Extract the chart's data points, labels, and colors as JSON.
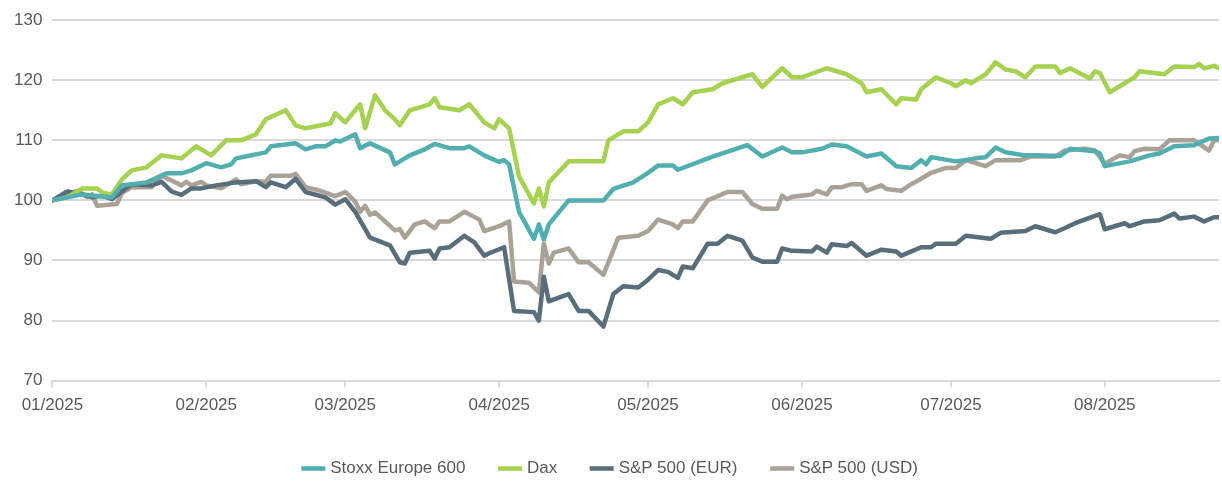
{
  "chart_data": {
    "type": "line",
    "xlim": [
      "2025-01-01",
      "2025-08-24"
    ],
    "xticks": [
      {
        "value": "2025-01-01",
        "label": "01/2025"
      },
      {
        "value": "2025-02-01",
        "label": "02/2025"
      },
      {
        "value": "2025-03-01",
        "label": "03/2025"
      },
      {
        "value": "2025-04-01",
        "label": "04/2025"
      },
      {
        "value": "2025-05-01",
        "label": "05/2025"
      },
      {
        "value": "2025-06-01",
        "label": "06/2025"
      },
      {
        "value": "2025-07-01",
        "label": "07/2025"
      },
      {
        "value": "2025-08-01",
        "label": "08/2025"
      }
    ],
    "ylim": [
      70,
      130
    ],
    "yticks": [
      70,
      80,
      90,
      100,
      110,
      120,
      130
    ],
    "grid": "y",
    "legend": "bottom",
    "marker": "none",
    "line_style": "solid",
    "series": [
      {
        "name": "Stoxx Europe 600",
        "color": "#52afb0",
        "x": [
          "2025-01-01",
          "2025-01-07",
          "2025-01-13",
          "2025-01-15",
          "2025-01-20",
          "2025-01-24",
          "2025-01-27",
          "2025-01-29",
          "2025-02-01",
          "2025-02-04",
          "2025-02-06",
          "2025-02-07",
          "2025-02-13",
          "2025-02-14",
          "2025-02-19",
          "2025-02-21",
          "2025-02-23",
          "2025-02-25",
          "2025-02-27",
          "2025-02-28",
          "2025-03-03",
          "2025-03-04",
          "2025-03-06",
          "2025-03-10",
          "2025-03-11",
          "2025-03-12",
          "2025-03-14",
          "2025-03-17",
          "2025-03-19",
          "2025-03-22",
          "2025-03-25",
          "2025-03-26",
          "2025-03-29",
          "2025-04-01",
          "2025-04-02",
          "2025-04-03",
          "2025-04-05",
          "2025-04-08",
          "2025-04-09",
          "2025-04-10",
          "2025-04-11",
          "2025-04-15",
          "2025-04-22",
          "2025-04-24",
          "2025-04-28",
          "2025-05-01",
          "2025-05-03",
          "2025-05-06",
          "2025-05-07",
          "2025-05-14",
          "2025-05-21",
          "2025-05-24",
          "2025-05-28",
          "2025-05-30",
          "2025-06-01",
          "2025-06-05",
          "2025-06-07",
          "2025-06-10",
          "2025-06-14",
          "2025-06-17",
          "2025-06-20",
          "2025-06-23",
          "2025-06-25",
          "2025-06-26",
          "2025-06-27",
          "2025-07-02",
          "2025-07-06",
          "2025-07-08",
          "2025-07-10",
          "2025-07-12",
          "2025-07-16",
          "2025-07-18",
          "2025-07-23",
          "2025-07-25",
          "2025-07-30",
          "2025-07-31",
          "2025-08-01",
          "2025-08-06",
          "2025-08-10",
          "2025-08-12",
          "2025-08-15",
          "2025-08-19",
          "2025-08-22",
          "2025-08-24"
        ],
        "values": [
          100,
          101,
          100.5,
          102.5,
          103,
          104.5,
          104.5,
          105,
          106.2,
          105.5,
          106,
          107,
          108,
          109,
          109.5,
          108.5,
          109,
          109,
          110,
          109.8,
          111,
          108.7,
          109.5,
          108,
          106,
          106.5,
          107.5,
          108.5,
          109.4,
          108.7,
          108.7,
          109,
          107.5,
          106.4,
          106.7,
          106,
          98.1,
          93.6,
          96,
          93.5,
          96,
          100,
          100,
          101.9,
          103,
          104.6,
          105.8,
          105.8,
          105.1,
          107.3,
          109.2,
          107.3,
          108.8,
          108,
          108,
          108.6,
          109.3,
          109,
          107.3,
          107.8,
          105.7,
          105.4,
          106.7,
          106,
          107.2,
          106.5,
          107,
          107.2,
          108.8,
          108,
          107.5,
          107.5,
          107.4,
          108.6,
          108.2,
          107.8,
          105.7,
          106.5,
          107.5,
          107.8,
          109,
          109.2,
          110.3,
          110.4
        ]
      },
      {
        "name": "Dax",
        "color": "#a6d151",
        "x": [
          "2025-01-01",
          "2025-01-04",
          "2025-01-07",
          "2025-01-10",
          "2025-01-11",
          "2025-01-13",
          "2025-01-15",
          "2025-01-17",
          "2025-01-20",
          "2025-01-23",
          "2025-01-27",
          "2025-01-30",
          "2025-02-02",
          "2025-02-05",
          "2025-02-08",
          "2025-02-11",
          "2025-02-13",
          "2025-02-17",
          "2025-02-19",
          "2025-02-21",
          "2025-02-26",
          "2025-02-27",
          "2025-03-01",
          "2025-03-04",
          "2025-03-05",
          "2025-03-07",
          "2025-03-09",
          "2025-03-11",
          "2025-03-12",
          "2025-03-14",
          "2025-03-18",
          "2025-03-19",
          "2025-03-20",
          "2025-03-24",
          "2025-03-26",
          "2025-03-29",
          "2025-03-31",
          "2025-04-01",
          "2025-04-03",
          "2025-04-05",
          "2025-04-08",
          "2025-04-09",
          "2025-04-10",
          "2025-04-11",
          "2025-04-15",
          "2025-04-18",
          "2025-04-22",
          "2025-04-23",
          "2025-04-26",
          "2025-04-29",
          "2025-05-01",
          "2025-05-03",
          "2025-05-06",
          "2025-05-08",
          "2025-05-10",
          "2025-05-14",
          "2025-05-16",
          "2025-05-22",
          "2025-05-24",
          "2025-05-28",
          "2025-05-30",
          "2025-06-01",
          "2025-06-06",
          "2025-06-10",
          "2025-06-13",
          "2025-06-14",
          "2025-06-17",
          "2025-06-20",
          "2025-06-21",
          "2025-06-24",
          "2025-06-25",
          "2025-06-28",
          "2025-07-01",
          "2025-07-02",
          "2025-07-04",
          "2025-07-05",
          "2025-07-08",
          "2025-07-10",
          "2025-07-12",
          "2025-07-14",
          "2025-07-16",
          "2025-07-18",
          "2025-07-22",
          "2025-07-23",
          "2025-07-25",
          "2025-07-29",
          "2025-07-30",
          "2025-07-31",
          "2025-08-02",
          "2025-08-07",
          "2025-08-08",
          "2025-08-13",
          "2025-08-15",
          "2025-08-19",
          "2025-08-20",
          "2025-08-21",
          "2025-08-23",
          "2025-08-24"
        ],
        "values": [
          100,
          100.5,
          102,
          102,
          101.3,
          101,
          103.5,
          105,
          105.5,
          107.5,
          107,
          109,
          107.5,
          110,
          110,
          111,
          113.5,
          115,
          112.5,
          112,
          112.8,
          114.5,
          113,
          116,
          112,
          117.5,
          115,
          113.5,
          112.5,
          115,
          116,
          117,
          115.5,
          115,
          116,
          113,
          112,
          113.5,
          112,
          104,
          99.5,
          102,
          99,
          103,
          106.5,
          106.5,
          106.5,
          110,
          111.5,
          111.5,
          113,
          116,
          117,
          116,
          118,
          118.5,
          119.5,
          121,
          118.9,
          122,
          120.5,
          120.5,
          122,
          121,
          119.5,
          118,
          118.5,
          116,
          117,
          116.8,
          118.5,
          120.5,
          119.5,
          119,
          120,
          119.5,
          121,
          123,
          121.8,
          121.5,
          120.5,
          122.3,
          122.3,
          121.2,
          122,
          120.3,
          121.5,
          121.2,
          118,
          120.5,
          121.5,
          121,
          122.3,
          122.2,
          122.7,
          122,
          122.4,
          122
        ]
      },
      {
        "name": "S&P 500 (EUR)",
        "color": "#586e7a",
        "x": [
          "2025-01-01",
          "2025-01-04",
          "2025-01-07",
          "2025-01-09",
          "2025-01-11",
          "2025-01-13",
          "2025-01-15",
          "2025-01-17",
          "2025-01-21",
          "2025-01-23",
          "2025-01-25",
          "2025-01-27",
          "2025-01-29",
          "2025-01-31",
          "2025-02-03",
          "2025-02-07",
          "2025-02-11",
          "2025-02-13",
          "2025-02-14",
          "2025-02-17",
          "2025-02-19",
          "2025-02-21",
          "2025-02-25",
          "2025-02-27",
          "2025-03-01",
          "2025-03-03",
          "2025-03-06",
          "2025-03-10",
          "2025-03-12",
          "2025-03-13",
          "2025-03-14",
          "2025-03-18",
          "2025-03-19",
          "2025-03-20",
          "2025-03-22",
          "2025-03-25",
          "2025-03-27",
          "2025-03-29",
          "2025-03-30",
          "2025-04-02",
          "2025-04-04",
          "2025-04-08",
          "2025-04-09",
          "2025-04-10",
          "2025-04-11",
          "2025-04-13",
          "2025-04-15",
          "2025-04-17",
          "2025-04-19",
          "2025-04-22",
          "2025-04-24",
          "2025-04-26",
          "2025-04-29",
          "2025-05-01",
          "2025-05-03",
          "2025-05-05",
          "2025-05-07",
          "2025-05-08",
          "2025-05-10",
          "2025-05-13",
          "2025-05-15",
          "2025-05-17",
          "2025-05-20",
          "2025-05-22",
          "2025-05-24",
          "2025-05-27",
          "2025-05-28",
          "2025-05-30",
          "2025-06-03",
          "2025-06-04",
          "2025-06-06",
          "2025-06-07",
          "2025-06-10",
          "2025-06-11",
          "2025-06-14",
          "2025-06-17",
          "2025-06-20",
          "2025-06-21",
          "2025-06-25",
          "2025-06-27",
          "2025-06-28",
          "2025-07-02",
          "2025-07-04",
          "2025-07-09",
          "2025-07-11",
          "2025-07-16",
          "2025-07-18",
          "2025-07-22",
          "2025-07-24",
          "2025-07-26",
          "2025-07-31",
          "2025-08-01",
          "2025-08-05",
          "2025-08-06",
          "2025-08-09",
          "2025-08-12",
          "2025-08-15",
          "2025-08-16",
          "2025-08-19",
          "2025-08-21",
          "2025-08-23",
          "2025-08-24"
        ],
        "values": [
          100,
          101.5,
          101,
          100.5,
          100.8,
          100.2,
          101.5,
          102.7,
          102.5,
          103.1,
          101.5,
          100.9,
          102,
          102,
          102.5,
          103,
          103.2,
          102.2,
          103,
          102.2,
          103.6,
          101.4,
          100.5,
          99.3,
          100.2,
          98.1,
          93.8,
          92.5,
          89.7,
          89.5,
          91.3,
          91.6,
          90.3,
          92,
          92.2,
          94.1,
          93,
          90.8,
          91.2,
          92.2,
          81.6,
          81.4,
          80,
          87.3,
          83.2,
          83.8,
          84.4,
          81.6,
          81.6,
          79,
          84.4,
          85.7,
          85.5,
          86.8,
          88.4,
          88.1,
          87.1,
          89,
          88.7,
          92.8,
          92.8,
          94.1,
          93.3,
          90.5,
          89.8,
          89.8,
          92,
          91.6,
          91.5,
          92.3,
          91.3,
          92.7,
          92.4,
          92.9,
          90.8,
          91.8,
          91.5,
          90.8,
          92.2,
          92.2,
          92.8,
          92.8,
          94.1,
          93.6,
          94.6,
          94.9,
          95.7,
          94.7,
          95.4,
          96.2,
          97.7,
          95.2,
          96.2,
          95.7,
          96.5,
          96.7,
          97.8,
          97,
          97.3,
          96.5,
          97.2,
          97.2
        ]
      },
      {
        "name": "S&P 500 (USD)",
        "color": "#aaa197",
        "x": [
          "2025-01-01",
          "2025-01-04",
          "2025-01-06",
          "2025-01-08",
          "2025-01-09",
          "2025-01-10",
          "2025-01-14",
          "2025-01-15",
          "2025-01-17",
          "2025-01-21",
          "2025-01-23",
          "2025-01-25",
          "2025-01-27",
          "2025-01-28",
          "2025-01-29",
          "2025-01-31",
          "2025-02-01",
          "2025-02-04",
          "2025-02-07",
          "2025-02-08",
          "2025-02-11",
          "2025-02-13",
          "2025-02-14",
          "2025-02-18",
          "2025-02-19",
          "2025-02-21",
          "2025-02-24",
          "2025-02-26",
          "2025-02-27",
          "2025-03-01",
          "2025-03-03",
          "2025-03-04",
          "2025-03-05",
          "2025-03-06",
          "2025-03-07",
          "2025-03-11",
          "2025-03-12",
          "2025-03-13",
          "2025-03-15",
          "2025-03-17",
          "2025-03-19",
          "2025-03-20",
          "2025-03-22",
          "2025-03-25",
          "2025-03-28",
          "2025-03-29",
          "2025-04-01",
          "2025-04-03",
          "2025-04-04",
          "2025-04-07",
          "2025-04-09",
          "2025-04-10",
          "2025-04-11",
          "2025-04-12",
          "2025-04-15",
          "2025-04-17",
          "2025-04-19",
          "2025-04-22",
          "2025-04-25",
          "2025-04-29",
          "2025-05-01",
          "2025-05-03",
          "2025-05-06",
          "2025-05-07",
          "2025-05-08",
          "2025-05-10",
          "2025-05-13",
          "2025-05-17",
          "2025-05-20",
          "2025-05-22",
          "2025-05-24",
          "2025-05-27",
          "2025-05-28",
          "2025-05-29",
          "2025-05-30",
          "2025-06-03",
          "2025-06-04",
          "2025-06-06",
          "2025-06-07",
          "2025-06-09",
          "2025-06-11",
          "2025-06-13",
          "2025-06-14",
          "2025-06-17",
          "2025-06-18",
          "2025-06-21",
          "2025-06-23",
          "2025-06-25",
          "2025-06-27",
          "2025-06-30",
          "2025-07-02",
          "2025-07-04",
          "2025-07-08",
          "2025-07-10",
          "2025-07-15",
          "2025-07-17",
          "2025-07-22",
          "2025-07-24",
          "2025-07-28",
          "2025-07-30",
          "2025-08-01",
          "2025-08-04",
          "2025-08-06",
          "2025-08-07",
          "2025-08-09",
          "2025-08-12",
          "2025-08-14",
          "2025-08-19",
          "2025-08-22",
          "2025-08-23",
          "2025-08-24"
        ],
        "values": [
          100,
          101,
          101.6,
          100.6,
          101,
          99.1,
          99.4,
          101.2,
          102.2,
          102.2,
          104.1,
          103.3,
          102.5,
          103.1,
          102.5,
          103.1,
          102.5,
          102,
          103.5,
          102.7,
          103.2,
          103.1,
          104.1,
          104.1,
          104.4,
          102.2,
          101.6,
          101,
          100.7,
          101.4,
          99.8,
          98.1,
          99.1,
          97.6,
          98,
          95,
          95.2,
          93.8,
          96,
          96.5,
          95.4,
          96.5,
          96.5,
          98.1,
          96.8,
          94.9,
          95.7,
          96.5,
          86.5,
          86.3,
          84.7,
          92.8,
          89.5,
          91.3,
          92,
          89.7,
          89.7,
          87.6,
          93.8,
          94.1,
          94.9,
          96.8,
          96,
          95.4,
          96.5,
          96.5,
          100,
          101.4,
          101.4,
          99.4,
          98.6,
          98.6,
          100.8,
          100.2,
          100.6,
          101,
          101.6,
          101,
          102.2,
          102.2,
          102.7,
          102.7,
          101.6,
          102.5,
          101.9,
          101.6,
          102.7,
          103.6,
          104.6,
          105.4,
          105.4,
          106.7,
          105.7,
          106.7,
          106.7,
          107.3,
          107.3,
          108.3,
          108.6,
          108.3,
          106.1,
          107.5,
          107.2,
          108.2,
          108.6,
          108.5,
          110,
          110,
          108.3,
          110,
          110
        ]
      }
    ]
  }
}
